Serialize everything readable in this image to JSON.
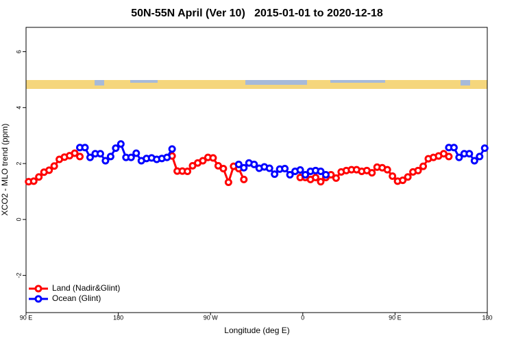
{
  "chart_data": {
    "type": "line",
    "title": "50N-55N April (Ver 10)   2015-01-01 to 2020-12-18",
    "x_label": "Longitude (deg E)",
    "y_label": "XCO2 - MLO trend (ppm)",
    "xlim": [
      90,
      540
    ],
    "xticks": [
      {
        "value": 90,
        "label": "90 E"
      },
      180,
      {
        "value": 270,
        "label": "90 W"
      },
      {
        "value": 360,
        "label": "0"
      },
      {
        "value": 450,
        "label": "90 E"
      },
      {
        "value": 540,
        "label": "180"
      }
    ],
    "ylim": [
      -3.33,
      6.87
    ],
    "yticks": [
      -2,
      0,
      2,
      4,
      6
    ],
    "legend": "bottomleft",
    "x": [
      92.5,
      97.5,
      102.5,
      107.5,
      112.5,
      117.5,
      122.5,
      127.5,
      132.5,
      137.5,
      142.5,
      147.5,
      152.5,
      157.5,
      162.5,
      167.5,
      172.5,
      177.5,
      182.5,
      187.5,
      192.5,
      197.5,
      202.5,
      207.5,
      212.5,
      217.5,
      222.5,
      227.5,
      232.5,
      237.5,
      242.5,
      247.5,
      252.5,
      257.5,
      262.5,
      267.5,
      272.5,
      277.5,
      282.5,
      287.5,
      292.5,
      297.5,
      302.5,
      307.5,
      312.5,
      317.5,
      322.5,
      327.5,
      332.5,
      337.5,
      342.5,
      347.5,
      352.5,
      357.5,
      362.5,
      367.5,
      372.5,
      377.5,
      382.5,
      387.5,
      392.5,
      397.5,
      402.5,
      407.5,
      412.5,
      417.5,
      422.5,
      427.5,
      432.5,
      437.5,
      442.5,
      447.5,
      452.5,
      457.5,
      462.5,
      467.5,
      472.5,
      477.5,
      482.5,
      487.5,
      492.5,
      497.5,
      502.5,
      507.5,
      512.5,
      517.5,
      522.5,
      527.5,
      532.5,
      537.5
    ],
    "series": [
      {
        "name": "Land (Nadir&Glint)",
        "color": "#ff0000",
        "values": [
          1.35,
          1.37,
          1.52,
          1.69,
          1.76,
          1.91,
          2.15,
          2.23,
          2.28,
          2.37,
          2.25,
          null,
          null,
          null,
          null,
          null,
          null,
          null,
          null,
          null,
          null,
          null,
          null,
          null,
          null,
          null,
          null,
          null,
          2.27,
          1.73,
          1.73,
          1.72,
          1.92,
          2.02,
          2.1,
          2.22,
          2.2,
          1.92,
          1.82,
          1.33,
          1.9,
          1.82,
          1.43,
          null,
          null,
          null,
          null,
          null,
          null,
          null,
          null,
          null,
          null,
          1.5,
          1.5,
          1.43,
          1.5,
          1.35,
          1.5,
          1.6,
          1.48,
          1.7,
          1.75,
          1.78,
          1.78,
          1.72,
          1.75,
          1.67,
          1.87,
          1.85,
          1.78,
          1.55,
          1.37,
          1.4,
          1.52,
          1.7,
          1.75,
          1.9,
          2.17,
          2.22,
          2.27,
          2.35,
          2.25,
          null,
          null,
          null,
          null,
          null,
          null,
          null
        ]
      },
      {
        "name": "Ocean (Glint)",
        "color": "#0000ff",
        "values": [
          null,
          null,
          null,
          null,
          null,
          null,
          null,
          null,
          null,
          null,
          2.57,
          2.57,
          2.22,
          2.35,
          2.35,
          2.1,
          2.25,
          2.55,
          2.7,
          2.22,
          2.22,
          2.37,
          2.1,
          2.18,
          2.2,
          2.15,
          2.18,
          2.22,
          2.52,
          null,
          null,
          null,
          null,
          null,
          null,
          null,
          null,
          null,
          null,
          null,
          null,
          1.97,
          1.85,
          2.02,
          1.97,
          1.83,
          1.88,
          1.83,
          1.62,
          1.8,
          1.82,
          1.6,
          1.72,
          1.77,
          1.6,
          1.72,
          1.75,
          1.72,
          1.6,
          null,
          null,
          null,
          null,
          null,
          null,
          null,
          null,
          null,
          null,
          null,
          null,
          null,
          null,
          null,
          null,
          null,
          null,
          null,
          null,
          null,
          null,
          null,
          2.57,
          2.57,
          2.22,
          2.35,
          2.35,
          2.1,
          2.25,
          2.55
        ]
      }
    ]
  }
}
